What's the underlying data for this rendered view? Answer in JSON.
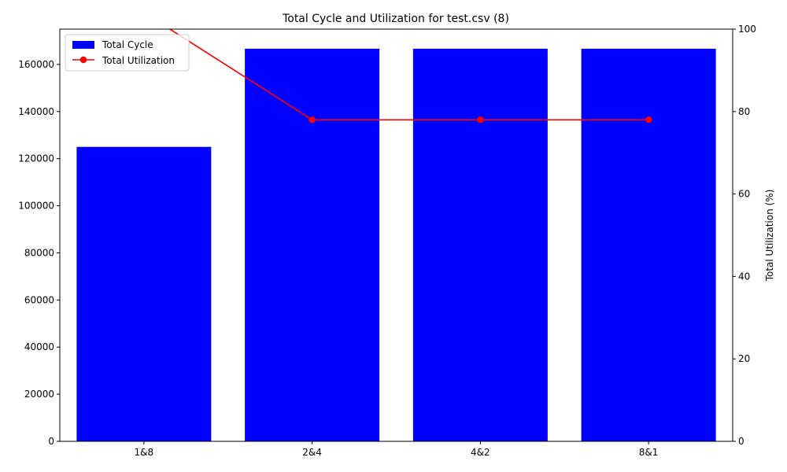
{
  "chart_data": {
    "type": "bar",
    "title": "Total Cycle and Utilization for test.csv (8)",
    "categories": [
      "1&8",
      "2&4",
      "4&2",
      "8&1"
    ],
    "series": [
      {
        "name": "Total Cycle",
        "type": "bar",
        "axis": "left",
        "color": "#0000ff",
        "values": [
          125000,
          166667,
          166667,
          166667
        ]
      },
      {
        "name": "Total Utilization",
        "type": "line",
        "axis": "right",
        "color": "#ff0000",
        "marker": "circle",
        "values": [
          104,
          78,
          78,
          78
        ]
      }
    ],
    "y_left": {
      "label": "",
      "ylim": [
        0,
        175000
      ],
      "ticks": [
        "0",
        "20000",
        "40000",
        "60000",
        "80000",
        "100000",
        "120000",
        "140000",
        "160000"
      ]
    },
    "y_right": {
      "label": "Total Utilization (%)",
      "ylim": [
        0,
        100
      ],
      "ticks": [
        "0",
        "20",
        "40",
        "60",
        "80",
        "100"
      ]
    },
    "xlabel": "",
    "legend": {
      "placement": "upper-left",
      "entries": [
        "Total Cycle",
        "Total Utilization"
      ]
    },
    "grid": false
  }
}
